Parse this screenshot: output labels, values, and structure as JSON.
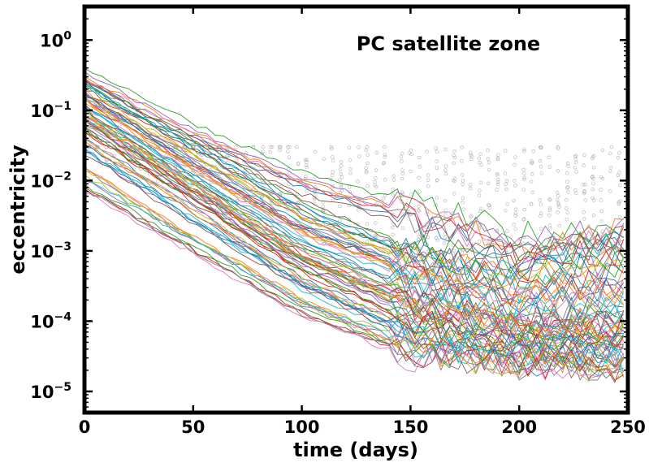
{
  "chart_data": {
    "type": "line",
    "title": "PC satellite zone",
    "xlabel": "time (days)",
    "ylabel": "eccentricity",
    "xlim": [
      0,
      250
    ],
    "ylim": [
      5e-06,
      3
    ],
    "yscale": "log",
    "grid": false,
    "legend": "none",
    "x_ticks": [
      {
        "value": 0,
        "label": "0"
      },
      {
        "value": 50,
        "label": "50"
      },
      {
        "value": 100,
        "label": "100"
      },
      {
        "value": 150,
        "label": "150"
      },
      {
        "value": 200,
        "label": "200"
      },
      {
        "value": 250,
        "label": "250"
      }
    ],
    "y_ticks": [
      {
        "value": 1e-05,
        "base": "10",
        "exp": "−5"
      },
      {
        "value": 0.0001,
        "base": "10",
        "exp": "−4"
      },
      {
        "value": 0.001,
        "base": "10",
        "exp": "−3"
      },
      {
        "value": 0.01,
        "base": "10",
        "exp": "−2"
      },
      {
        "value": 0.1,
        "base": "10",
        "exp": "−1"
      },
      {
        "value": 1,
        "base": "10",
        "exp": "0"
      }
    ],
    "palette": [
      "#1f77b4",
      "#ff7f0e",
      "#2ca02c",
      "#d62728",
      "#9467bd",
      "#8c564b",
      "#e377c2",
      "#7f7f7f",
      "#bcbd22",
      "#17becf"
    ],
    "scatter_color": "#b0b0b0",
    "series": [
      {
        "x": [
          0,
          50,
          100,
          150,
          200,
          250
        ],
        "y": [
          0.28,
          0.045,
          0.009,
          0.0032,
          0.0011,
          0.0017
        ]
      },
      {
        "x": [
          0,
          50,
          100,
          150,
          200,
          250
        ],
        "y": [
          0.2,
          0.03,
          0.004,
          0.0009,
          0.0006,
          0.0012
        ]
      },
      {
        "x": [
          0,
          50,
          100,
          150,
          200,
          250
        ],
        "y": [
          0.16,
          0.02,
          0.0025,
          0.0006,
          0.0003,
          0.0005
        ]
      },
      {
        "x": [
          0,
          50,
          100,
          150,
          200,
          250
        ],
        "y": [
          0.12,
          0.012,
          0.0015,
          0.0004,
          0.00015,
          0.0002
        ]
      },
      {
        "x": [
          0,
          50,
          100,
          150,
          200,
          250
        ],
        "y": [
          0.1,
          0.01,
          0.0011,
          0.00025,
          0.0001,
          0.00012
        ]
      },
      {
        "x": [
          0,
          50,
          100,
          150,
          200,
          250
        ],
        "y": [
          0.08,
          0.008,
          0.0009,
          0.0002,
          8e-05,
          0.0001
        ]
      },
      {
        "x": [
          0,
          50,
          100,
          150,
          200,
          250
        ],
        "y": [
          0.06,
          0.006,
          0.0006,
          0.00012,
          5e-05,
          6e-05
        ]
      },
      {
        "x": [
          0,
          50,
          100,
          150,
          200,
          250
        ],
        "y": [
          0.04,
          0.004,
          0.0004,
          8e-05,
          3e-05,
          4e-05
        ]
      },
      {
        "x": [
          0,
          50,
          100,
          150,
          200,
          250
        ],
        "y": [
          0.02,
          0.002,
          0.00025,
          5e-05,
          3e-05,
          3e-05
        ]
      },
      {
        "x": [
          0,
          50,
          100,
          150,
          200,
          250
        ],
        "y": [
          0.009,
          0.0012,
          0.00015,
          4e-05,
          3e-05,
          2.5e-05
        ]
      }
    ]
  }
}
